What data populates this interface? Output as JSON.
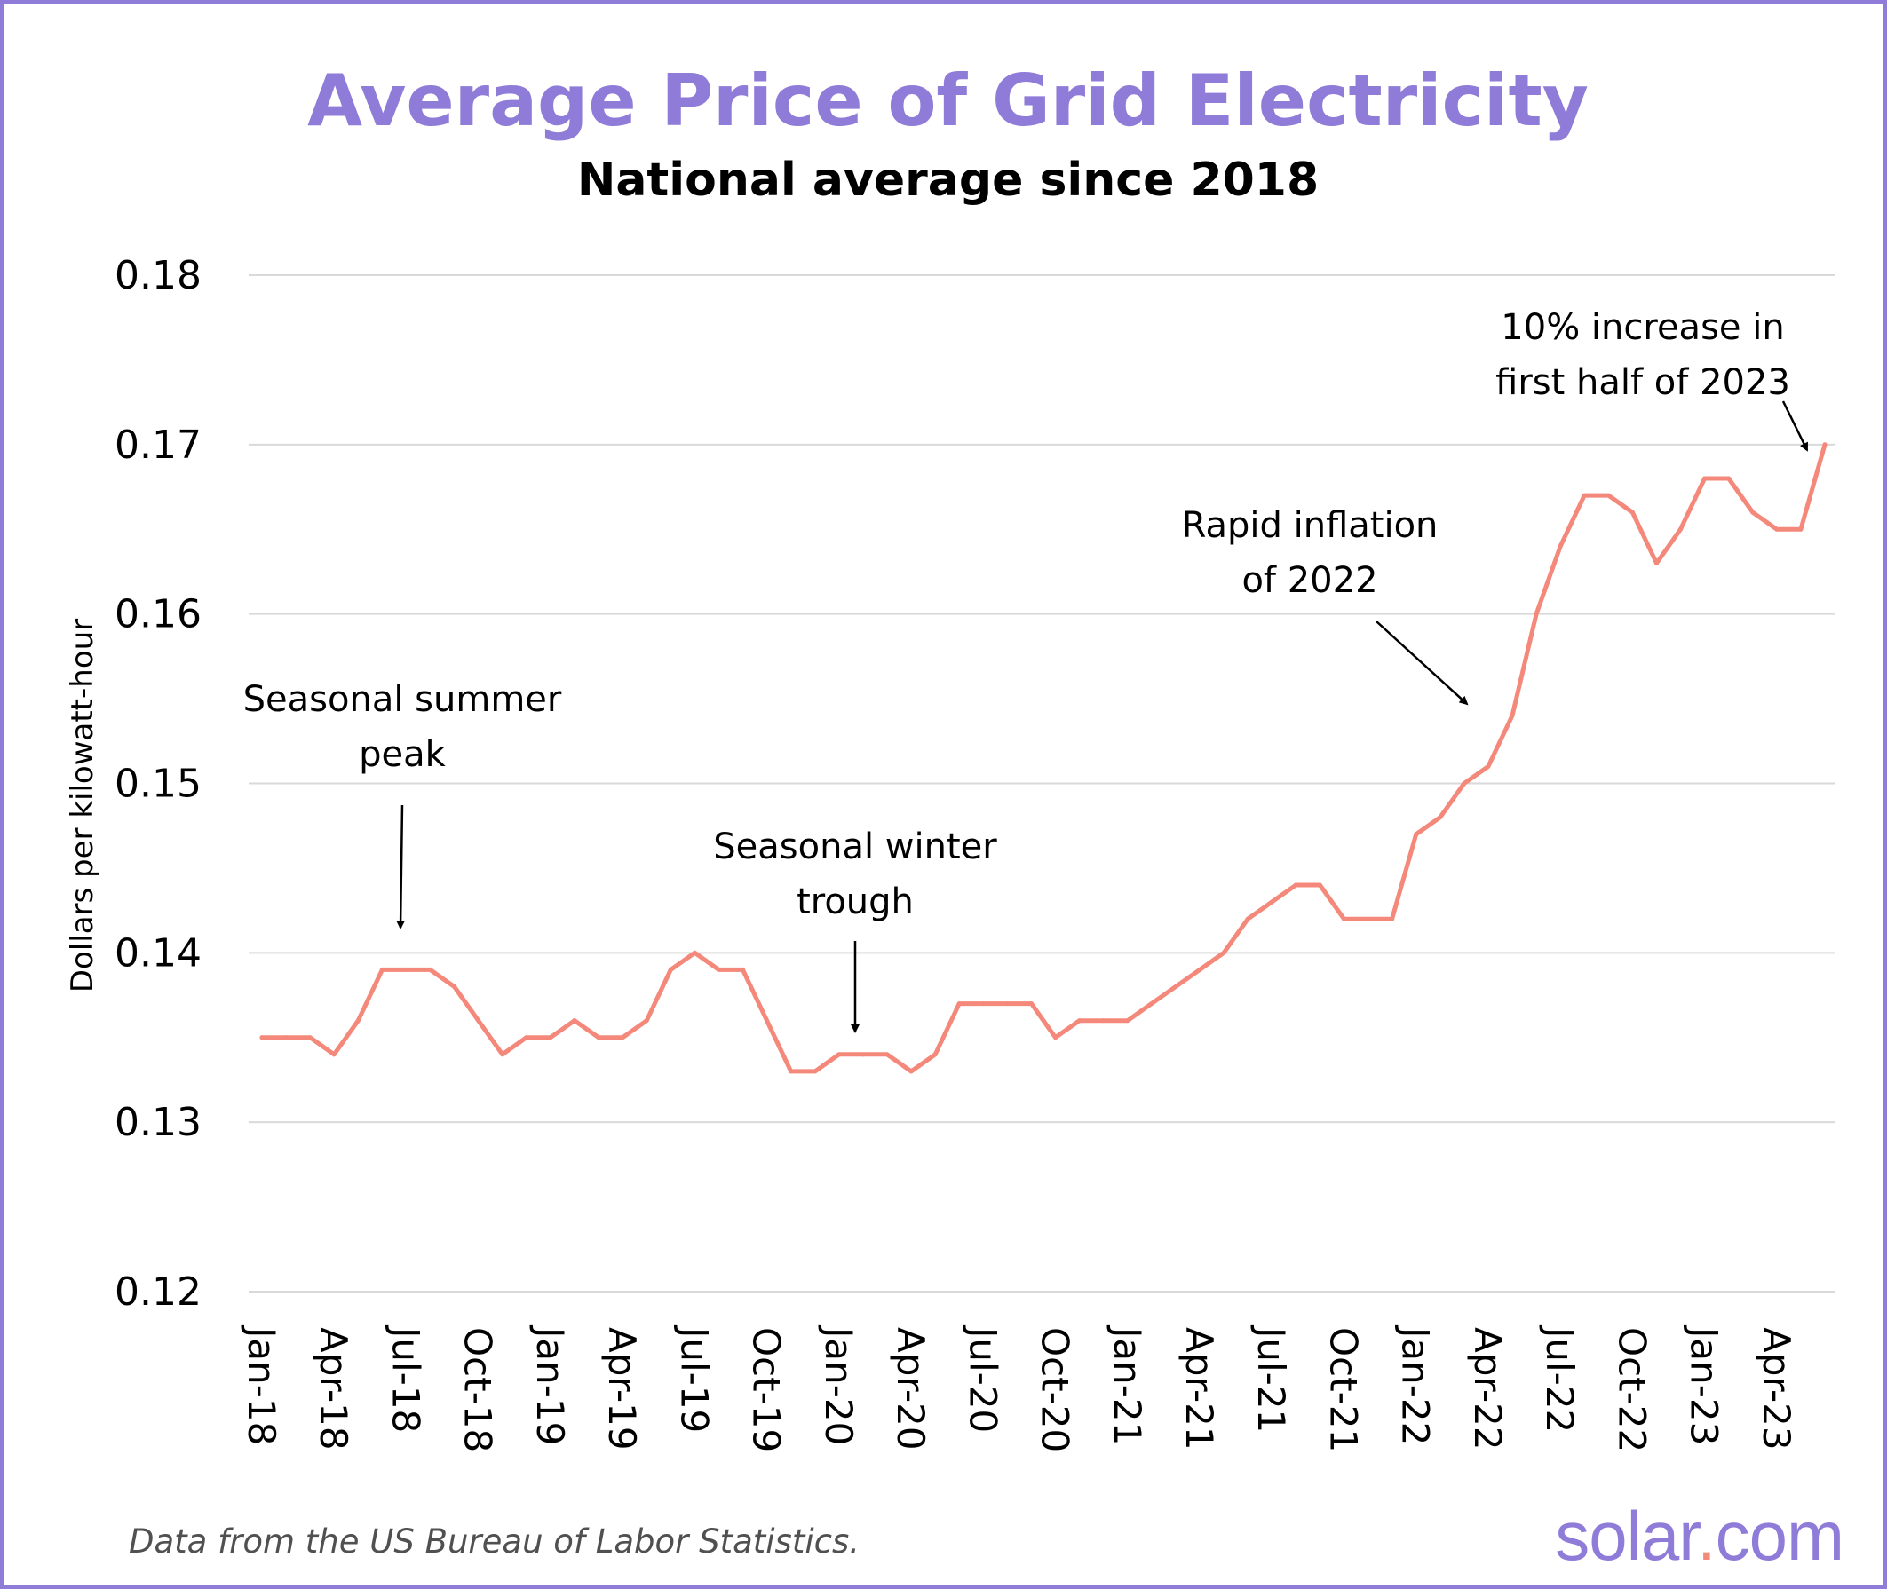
{
  "chart_data": {
    "type": "line",
    "title": "Average Price of Grid Electricity",
    "subtitle": "National average since 2018",
    "ylabel": "Dollars per kilowatt-hour",
    "xlabel": "",
    "ylim": [
      0.12,
      0.18
    ],
    "yticks": [
      "0.12",
      "0.13",
      "0.14",
      "0.15",
      "0.16",
      "0.17",
      "0.18"
    ],
    "grid": true,
    "series": [
      {
        "name": "",
        "color": "#f4887a",
        "x": [
          "Jan-18",
          "Feb-18",
          "Mar-18",
          "Apr-18",
          "May-18",
          "Jun-18",
          "Jul-18",
          "Aug-18",
          "Sep-18",
          "Oct-18",
          "Nov-18",
          "Dec-18",
          "Jan-19",
          "Feb-19",
          "Mar-19",
          "Apr-19",
          "May-19",
          "Jun-19",
          "Jul-19",
          "Aug-19",
          "Sep-19",
          "Oct-19",
          "Nov-19",
          "Dec-19",
          "Jan-20",
          "Feb-20",
          "Mar-20",
          "Apr-20",
          "May-20",
          "Jun-20",
          "Jul-20",
          "Aug-20",
          "Sep-20",
          "Oct-20",
          "Nov-20",
          "Dec-20",
          "Jan-21",
          "Feb-21",
          "Mar-21",
          "Apr-21",
          "May-21",
          "Jun-21",
          "Jul-21",
          "Aug-21",
          "Sep-21",
          "Oct-21",
          "Nov-21",
          "Dec-21",
          "Jan-22",
          "Feb-22",
          "Mar-22",
          "Apr-22",
          "May-22",
          "Jun-22",
          "Jul-22",
          "Aug-22",
          "Sep-22",
          "Oct-22",
          "Nov-22",
          "Dec-22",
          "Jan-23",
          "Feb-23",
          "Mar-23",
          "Apr-23",
          "May-23",
          "Jun-23"
        ],
        "values": [
          0.135,
          0.135,
          0.135,
          0.134,
          0.136,
          0.139,
          0.139,
          0.139,
          0.138,
          0.136,
          0.134,
          0.135,
          0.135,
          0.136,
          0.135,
          0.135,
          0.136,
          0.139,
          0.14,
          0.139,
          0.139,
          0.136,
          0.133,
          0.133,
          0.134,
          0.134,
          0.134,
          0.133,
          0.134,
          0.137,
          0.137,
          0.137,
          0.137,
          0.135,
          0.136,
          0.136,
          0.136,
          0.137,
          0.138,
          0.139,
          0.14,
          0.142,
          0.143,
          0.144,
          0.144,
          0.142,
          0.142,
          0.142,
          0.147,
          0.148,
          0.15,
          0.151,
          0.154,
          0.16,
          0.164,
          0.167,
          0.167,
          0.166,
          0.163,
          0.165,
          0.168,
          0.168,
          0.166,
          0.165,
          0.165,
          0.17
        ]
      }
    ],
    "x_tick_labels": [
      "Jan-18",
      "Apr-18",
      "Jul-18",
      "Oct-18",
      "Jan-19",
      "Apr-19",
      "Jul-19",
      "Oct-19",
      "Jan-20",
      "Apr-20",
      "Jul-20",
      "Oct-20",
      "Jan-21",
      "Apr-21",
      "Jul-21",
      "Oct-21",
      "Jan-22",
      "Apr-22",
      "Jul-22",
      "Oct-22",
      "Jan-23",
      "Apr-23"
    ],
    "annotations": [
      {
        "lines": [
          "Seasonal summer",
          "peak"
        ],
        "target": "Jul-18"
      },
      {
        "lines": [
          "Seasonal winter",
          "trough"
        ],
        "target": "Feb-20"
      },
      {
        "lines": [
          "Rapid inflation",
          "of 2022"
        ],
        "target": "Apr-22"
      },
      {
        "lines": [
          "10% increase in",
          "first half of 2023"
        ],
        "target": "Jun-23"
      }
    ]
  },
  "footer": {
    "source": "Data from the US Bureau of Labor Statistics.",
    "brand_name": "solar",
    "brand_dot": ".",
    "brand_suffix": "com"
  },
  "colors": {
    "accent": "#8f7bd8",
    "line": "#f4887a",
    "grid": "#d9d9d9"
  }
}
